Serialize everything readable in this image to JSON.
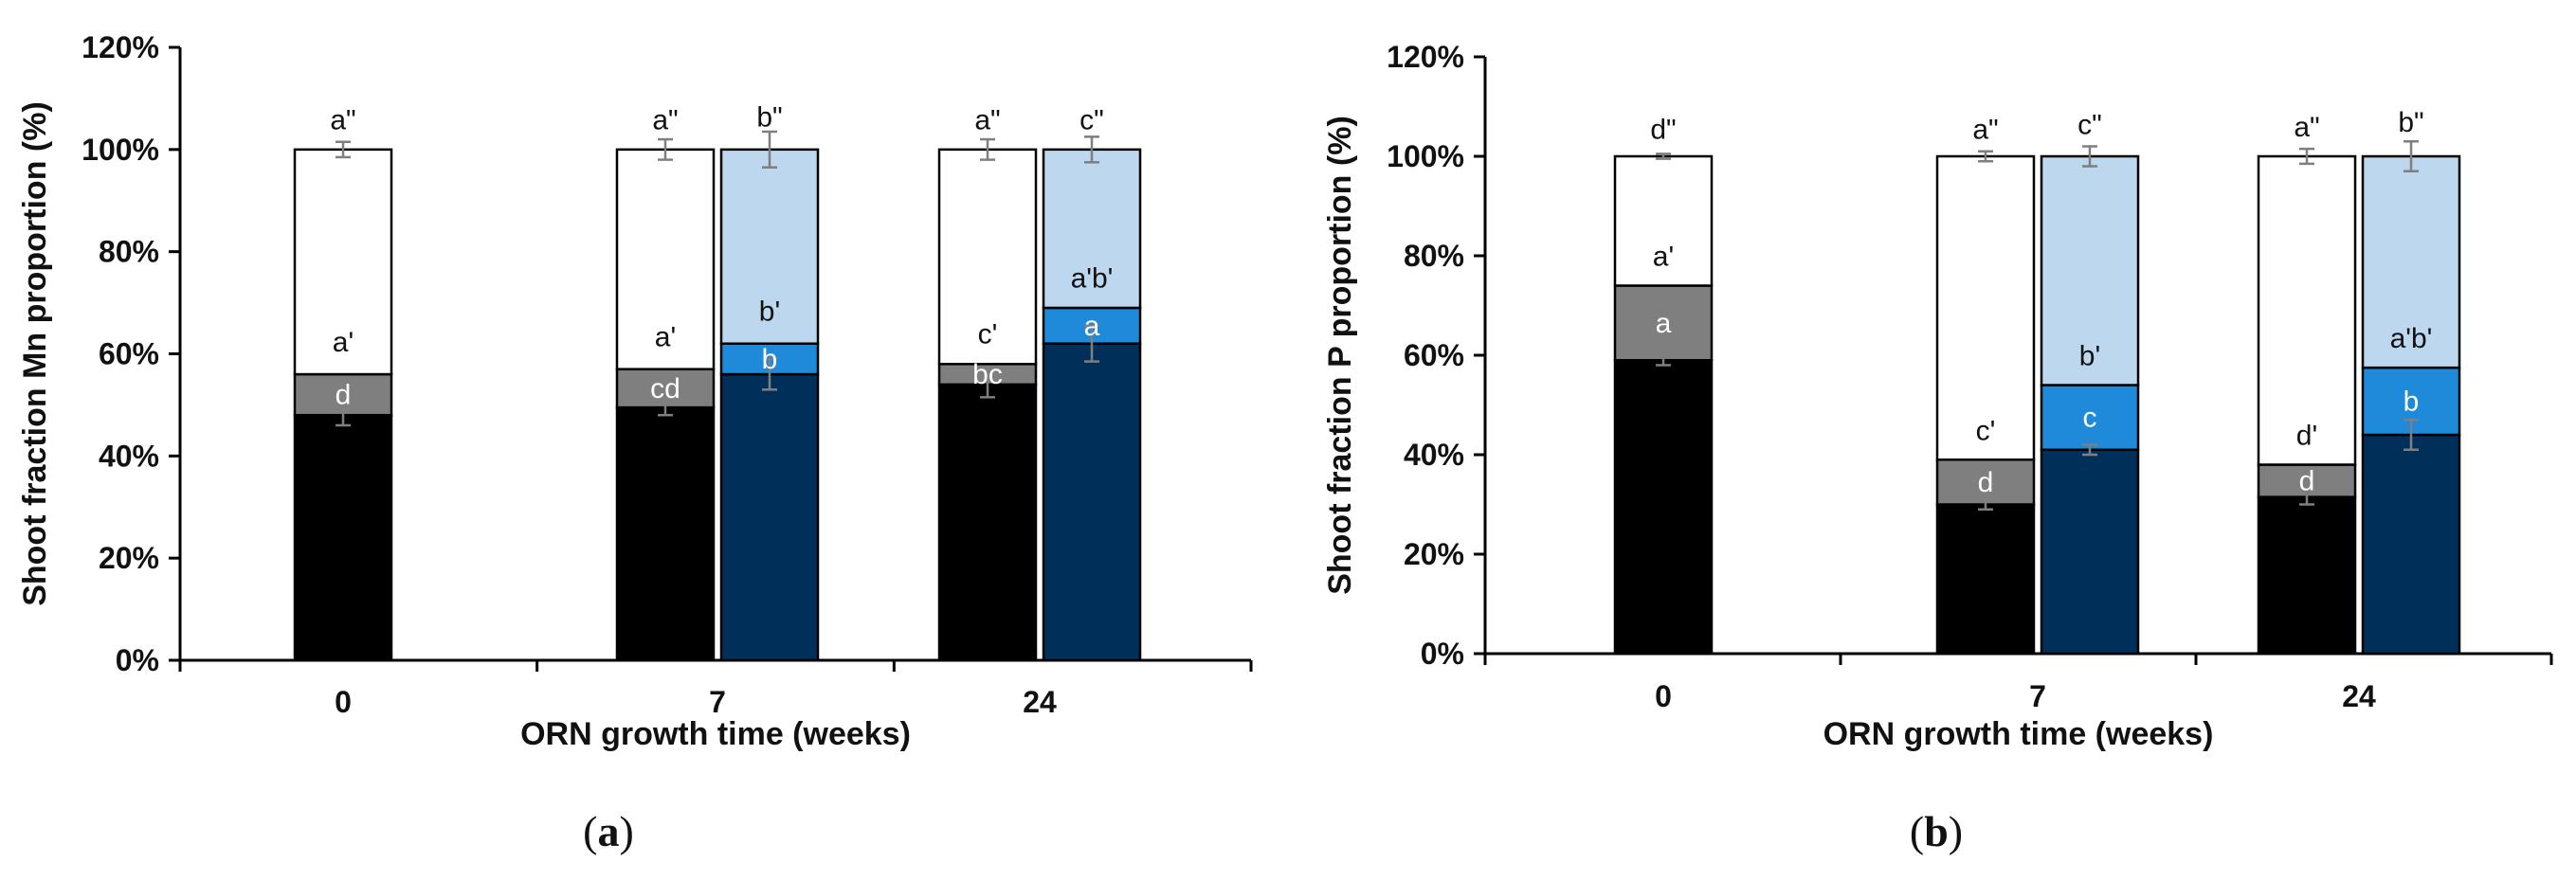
{
  "colors": {
    "black": "#000000",
    "gray": "#7f7f7f",
    "white": "#ffffff",
    "dark_blue": "#00305a",
    "mid_blue": "#1f8ad9",
    "light_blue": "#bdd7ee",
    "errorbar": "#7f7f7f",
    "axis": "#000000"
  },
  "chart_data": [
    {
      "type": "bar",
      "stacked": true,
      "panel_label": "(a)",
      "panel_label_parts": [
        "(",
        "a",
        ")"
      ],
      "xlabel": "ORN growth time (weeks)",
      "ylabel": "Shoot fraction Mn proportion (%)",
      "ylim": [
        0,
        120
      ],
      "yticks": [
        "0%",
        "20%",
        "40%",
        "60%",
        "80%",
        "100%",
        "120%"
      ],
      "categories": [
        "0",
        "7",
        "24"
      ],
      "bars": [
        {
          "category": "0",
          "group": "grey",
          "segments": [
            {
              "value": 48,
              "top": 48,
              "color": "black",
              "err": 2,
              "label": "",
              "label_color": "#000"
            },
            {
              "value": 8,
              "top": 56,
              "color": "gray",
              "err": 0,
              "label": "d",
              "label_color": "#ffffff"
            },
            {
              "value": 44,
              "top": 100,
              "color": "white",
              "err": 1.5,
              "label": "",
              "label_color": "#000"
            }
          ],
          "top_labels": [
            {
              "text": "a'",
              "y": 60.5
            },
            {
              "text": "a\"",
              "y": 104
            }
          ]
        },
        {
          "category": "7",
          "group": "grey",
          "segments": [
            {
              "value": 49.5,
              "top": 49.5,
              "color": "black",
              "err": 1.5,
              "label": "",
              "label_color": "#000"
            },
            {
              "value": 7.5,
              "top": 57,
              "color": "gray",
              "err": 0,
              "label": "cd",
              "label_color": "#ffffff"
            },
            {
              "value": 43,
              "top": 100,
              "color": "white",
              "err": 2,
              "label": "",
              "label_color": "#000"
            }
          ],
          "top_labels": [
            {
              "text": "a'",
              "y": 61.5
            },
            {
              "text": "a\"",
              "y": 104
            }
          ]
        },
        {
          "category": "7",
          "group": "blue",
          "segments": [
            {
              "value": 56,
              "top": 56,
              "color": "dark_blue",
              "err": 3,
              "label": "",
              "label_color": "#000"
            },
            {
              "value": 6,
              "top": 62,
              "color": "mid_blue",
              "err": 0,
              "label": "b",
              "label_color": "#ffffff"
            },
            {
              "value": 38,
              "top": 100,
              "color": "light_blue",
              "err": 3.5,
              "label": "",
              "label_color": "#000"
            }
          ],
          "top_labels": [
            {
              "text": "b'",
              "y": 66.5
            },
            {
              "text": "b\"",
              "y": 104.5
            }
          ]
        },
        {
          "category": "24",
          "group": "grey",
          "segments": [
            {
              "value": 54,
              "top": 54,
              "color": "black",
              "err": 2.5,
              "label": "",
              "label_color": "#000"
            },
            {
              "value": 4,
              "top": 58,
              "color": "gray",
              "err": 0,
              "label": "bc",
              "label_color": "#ffffff"
            },
            {
              "value": 42,
              "top": 100,
              "color": "white",
              "err": 2,
              "label": "",
              "label_color": "#000"
            }
          ],
          "top_labels": [
            {
              "text": "c'",
              "y": 62
            },
            {
              "text": "a\"",
              "y": 104
            }
          ]
        },
        {
          "category": "24",
          "group": "blue",
          "segments": [
            {
              "value": 62,
              "top": 62,
              "color": "dark_blue",
              "err": 3.5,
              "label": "",
              "label_color": "#000"
            },
            {
              "value": 7,
              "top": 69,
              "color": "mid_blue",
              "err": 0,
              "label": "a",
              "label_color": "#ffffff"
            },
            {
              "value": 31,
              "top": 100,
              "color": "light_blue",
              "err": 2.5,
              "label": "",
              "label_color": "#000"
            }
          ],
          "top_labels": [
            {
              "text": "a'b'",
              "y": 73
            },
            {
              "text": "c\"",
              "y": 104
            }
          ]
        }
      ]
    },
    {
      "type": "bar",
      "stacked": true,
      "panel_label": "(b)",
      "panel_label_parts": [
        "(",
        "b",
        ")"
      ],
      "xlabel": "ORN growth time (weeks)",
      "ylabel": "Shoot fraction P proportion (%)",
      "ylim": [
        0,
        120
      ],
      "yticks": [
        "0%",
        "20%",
        "40%",
        "60%",
        "80%",
        "100%",
        "120%"
      ],
      "categories": [
        "0",
        "7",
        "24"
      ],
      "bars": [
        {
          "category": "0",
          "group": "grey",
          "segments": [
            {
              "value": 59,
              "top": 59,
              "color": "black",
              "err": 1,
              "label": "",
              "label_color": "#000"
            },
            {
              "value": 15,
              "top": 74,
              "color": "gray",
              "err": 0,
              "label": "a",
              "label_color": "#ffffff"
            },
            {
              "value": 26,
              "top": 100,
              "color": "white",
              "err": 0.5,
              "label": "",
              "label_color": "#000"
            }
          ],
          "top_labels": [
            {
              "text": "a'",
              "y": 78
            },
            {
              "text": "d\"",
              "y": 103.5
            }
          ]
        },
        {
          "category": "7",
          "group": "grey",
          "segments": [
            {
              "value": 30,
              "top": 30,
              "color": "black",
              "err": 1,
              "label": "",
              "label_color": "#000"
            },
            {
              "value": 9,
              "top": 39,
              "color": "gray",
              "err": 0,
              "label": "d",
              "label_color": "#ffffff"
            },
            {
              "value": 61,
              "top": 100,
              "color": "white",
              "err": 1,
              "label": "",
              "label_color": "#000"
            }
          ],
          "top_labels": [
            {
              "text": "c'",
              "y": 43
            },
            {
              "text": "a\"",
              "y": 103.5
            }
          ]
        },
        {
          "category": "7",
          "group": "blue",
          "segments": [
            {
              "value": 41,
              "top": 41,
              "color": "dark_blue",
              "err": 1,
              "label": "",
              "label_color": "#000"
            },
            {
              "value": 13,
              "top": 54,
              "color": "mid_blue",
              "err": 0,
              "label": "c",
              "label_color": "#ffffff"
            },
            {
              "value": 46,
              "top": 100,
              "color": "light_blue",
              "err": 2,
              "label": "",
              "label_color": "#000"
            }
          ],
          "top_labels": [
            {
              "text": "b'",
              "y": 58
            },
            {
              "text": "c\"",
              "y": 104.5
            }
          ]
        },
        {
          "category": "24",
          "group": "grey",
          "segments": [
            {
              "value": 31.5,
              "top": 31.5,
              "color": "black",
              "err": 1.5,
              "label": "",
              "label_color": "#000"
            },
            {
              "value": 6.5,
              "top": 38,
              "color": "gray",
              "err": 0,
              "label": "d",
              "label_color": "#ffffff"
            },
            {
              "value": 62,
              "top": 100,
              "color": "white",
              "err": 1.5,
              "label": "",
              "label_color": "#000"
            }
          ],
          "top_labels": [
            {
              "text": "d'",
              "y": 42
            },
            {
              "text": "a\"",
              "y": 104
            }
          ]
        },
        {
          "category": "24",
          "group": "blue",
          "segments": [
            {
              "value": 44,
              "top": 44,
              "color": "dark_blue",
              "err": 3,
              "label": "",
              "label_color": "#000"
            },
            {
              "value": 13.5,
              "top": 57.5,
              "color": "mid_blue",
              "err": 0,
              "label": "b",
              "label_color": "#ffffff"
            },
            {
              "value": 42.5,
              "top": 100,
              "color": "light_blue",
              "err": 3,
              "label": "",
              "label_color": "#000"
            }
          ],
          "top_labels": [
            {
              "text": "a'b'",
              "y": 61.5
            },
            {
              "text": "b\"",
              "y": 105
            }
          ]
        }
      ]
    }
  ]
}
